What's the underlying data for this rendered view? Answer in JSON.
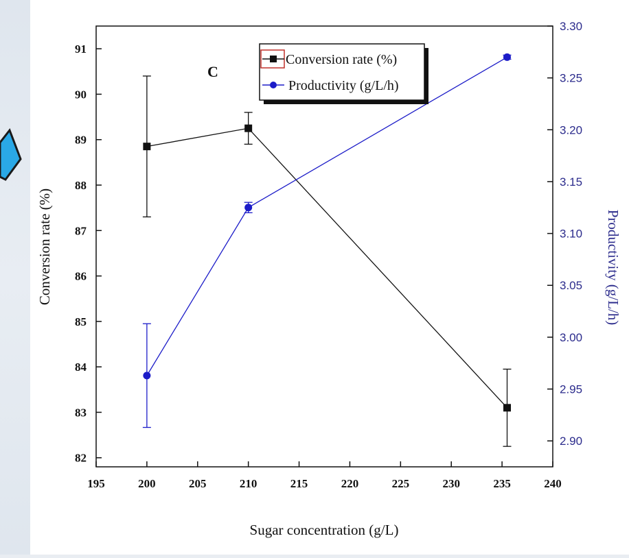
{
  "chart_data": {
    "type": "line",
    "panel_label": "C",
    "xlabel": "Sugar concentration (g/L)",
    "ylabel_left": "Conversion rate (%)",
    "ylabel_right": "Productivity (g/L/h)",
    "xlim": [
      195,
      240
    ],
    "ylim_left": [
      81.8,
      91.5
    ],
    "ylim_right": [
      2.875,
      3.3
    ],
    "x_ticks": [
      195,
      200,
      205,
      210,
      215,
      220,
      225,
      230,
      235,
      240
    ],
    "y_left_ticks": [
      82,
      83,
      84,
      85,
      86,
      87,
      88,
      89,
      90,
      91
    ],
    "y_right_ticks": [
      "2.90",
      "2.95",
      "3.00",
      "3.05",
      "3.10",
      "3.15",
      "3.20",
      "3.25",
      "3.30"
    ],
    "grid": false,
    "legend_placement": "top-center",
    "series": [
      {
        "name": "Conversion rate (%)",
        "axis": "left",
        "marker": "square",
        "color": "#111111",
        "x": [
          200,
          210,
          235.5
        ],
        "y": [
          88.85,
          89.25,
          83.1
        ],
        "err": [
          1.55,
          0.35,
          0.85
        ]
      },
      {
        "name": "Productivity (g/L/h)",
        "axis": "right",
        "marker": "circle",
        "color": "#1c1cc8",
        "x": [
          200,
          210,
          235.5
        ],
        "y": [
          2.963,
          3.125,
          3.27
        ],
        "err": [
          0.05,
          0.005,
          0.002
        ]
      }
    ]
  }
}
